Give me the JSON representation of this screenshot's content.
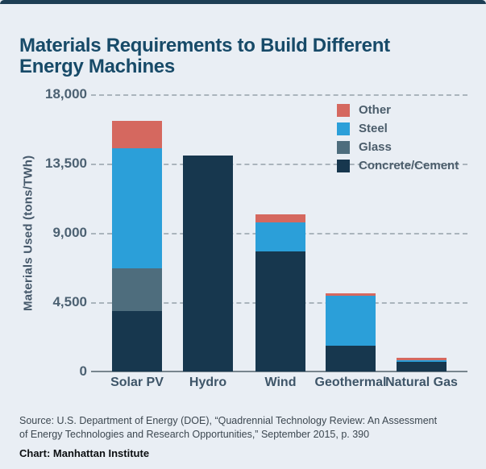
{
  "title": "Materials Requirements to Build Different Energy Machines",
  "source_line": "Source: U.S. Department of Energy (DOE), “Quadrennial Technology Review: An Assessment of Energy Technologies and Research Opportunities,” September 2015, p. 390",
  "credit_line": "Chart: Manhattan Institute",
  "colors": {
    "background": "#e9eef4",
    "top_bar": "#1d3e54",
    "title_text": "#174a68",
    "axis_text": "#4c6172",
    "gridline": "#aab4bc",
    "other": "#d5685f",
    "steel": "#2b9fd9",
    "glass": "#4e6d7d",
    "concrete": "#17374e"
  },
  "chart_data": {
    "type": "bar",
    "subtype": "stacked-vertical",
    "categories": [
      "Solar PV",
      "Hydro",
      "Wind",
      "Geothermal",
      "Natural Gas"
    ],
    "series": [
      {
        "name": "Concrete/Cement",
        "color": "#17374e",
        "values": [
          3900,
          14000,
          7800,
          1700,
          650
        ]
      },
      {
        "name": "Glass",
        "color": "#4e6d7d",
        "values": [
          2800,
          0,
          0,
          0,
          0
        ]
      },
      {
        "name": "Steel",
        "color": "#2b9fd9",
        "values": [
          7800,
          0,
          1900,
          3200,
          100
        ]
      },
      {
        "name": "Other",
        "color": "#d5685f",
        "values": [
          1800,
          0,
          500,
          200,
          150
        ]
      }
    ],
    "totals": [
      16300,
      14000,
      10200,
      5100,
      900
    ],
    "legend_order": [
      "Other",
      "Steel",
      "Glass",
      "Concrete/Cement"
    ],
    "legend_position": "top-right",
    "title": "Materials Requirements to Build Different Energy Machines",
    "xlabel": "",
    "ylabel": "Materials Used (tons/TWh)",
    "ylim": [
      0,
      18000
    ],
    "yticks": [
      {
        "value": 0,
        "label": "0"
      },
      {
        "value": 4500,
        "label": "4,500"
      },
      {
        "value": 9000,
        "label": "9,000"
      },
      {
        "value": 13500,
        "label": "13,500"
      },
      {
        "value": 18000,
        "label": "18,000"
      }
    ],
    "grid": "horizontal-dashed"
  }
}
